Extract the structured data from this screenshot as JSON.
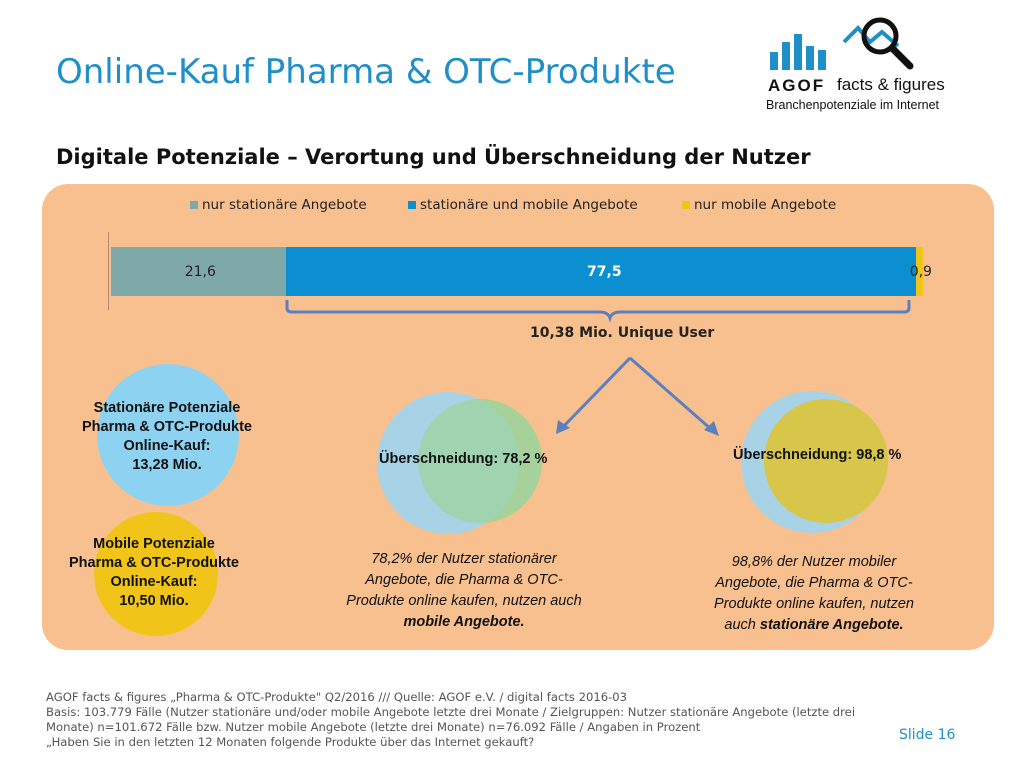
{
  "header": {
    "title": "Online-Kauf Pharma & OTC-Produkte",
    "subtitle": "Digitale Potenziale – Verortung und Überschneidung der Nutzer"
  },
  "logo": {
    "brand": "AGOF",
    "product": "facts & figures",
    "tagline": "Branchenpotenziale im Internet"
  },
  "chart_data": {
    "type": "bar",
    "orientation": "horizontal-stacked",
    "unit": "Prozent",
    "series": [
      {
        "name": "nur stationäre Angebote",
        "values": [
          21.6
        ],
        "label": "21,6",
        "color": "#7fa8a8"
      },
      {
        "name": "stationäre und mobile Angebote",
        "values": [
          77.5
        ],
        "label": "77,5",
        "color": "#0b8fd0"
      },
      {
        "name": "nur mobile Angebote",
        "values": [
          0.9
        ],
        "label": "0,9",
        "color": "#f0c419"
      }
    ],
    "legend_position": "top",
    "annotation": "10,38 Mio. Unique User"
  },
  "potentials": {
    "stationary": {
      "lines": [
        "Stationäre Potenziale",
        "Pharma & OTC-Produkte",
        "Online-Kauf:",
        "13,28 Mio."
      ],
      "color": "#8ed2f2"
    },
    "mobile": {
      "lines": [
        "Mobile Potenziale",
        "Pharma & OTC-Produkte",
        "Online-Kauf:",
        "10,50 Mio."
      ],
      "color": "#f0c419"
    }
  },
  "overlaps": {
    "left": {
      "label": "Überschneidung: 78,2 %",
      "desc_lines": [
        "78,2% der Nutzer stationärer",
        "Angebote, die Pharma & OTC-",
        "Produkte online kaufen, nutzen auch"
      ],
      "desc_bold": "mobile Angebote."
    },
    "right": {
      "label": "Überschneidung: 98,8 %",
      "desc_lines": [
        "98,8% der Nutzer mobiler",
        "Angebote, die Pharma & OTC-",
        "Produkte online kaufen, nutzen"
      ],
      "desc_prefix": "auch ",
      "desc_bold": "stationäre Angebote."
    }
  },
  "colors": {
    "accent": "#1f8fc7",
    "panel": "#f8c08e",
    "overlap_green": "#9fd3a8",
    "overlap_olive": "#d7c64a",
    "arrow": "#5b7fbf"
  },
  "footer": {
    "lines": [
      "AGOF facts & figures „Pharma & OTC-Produkte\" Q2/2016 /// Quelle: AGOF e.V. / digital facts 2016-03",
      "Basis: 103.779 Fälle (Nutzer stationäre und/oder mobile Angebote letzte drei Monate / Zielgruppen: Nutzer stationäre Angebote (letzte drei",
      "Monate) n=101.672 Fälle bzw. Nutzer mobile Angebote (letzte drei Monate) n=76.092 Fälle / Angaben in Prozent",
      "„Haben Sie in den letzten 12 Monaten folgende Produkte über das Internet gekauft?"
    ],
    "slide": "Slide 16"
  }
}
